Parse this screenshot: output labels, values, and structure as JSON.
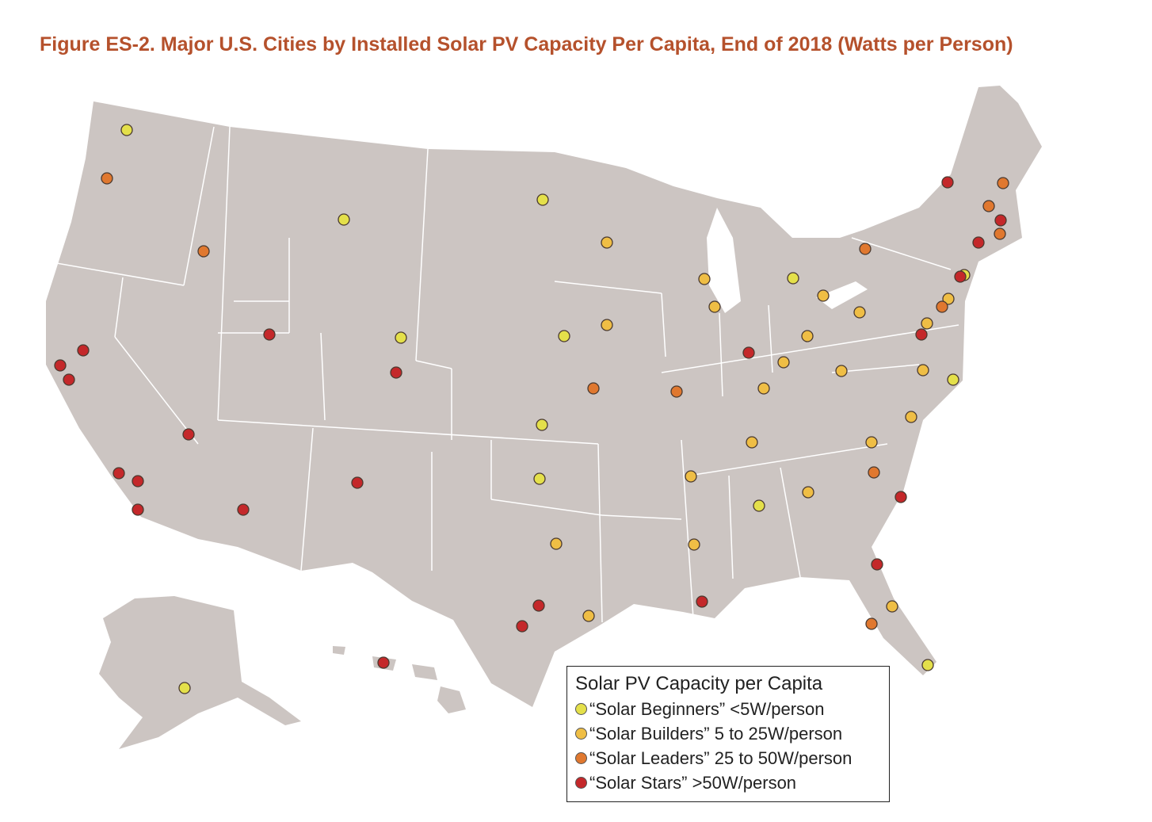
{
  "title": "Figure ES-2. Major U.S. Cities by Installed Solar PV Capacity Per Capita, End of 2018 (Watts per Person)",
  "map_fill": "#ccc5c2",
  "legend": {
    "title": "Solar PV Capacity per Capita",
    "items": [
      {
        "label": "“Solar Beginners” <5W/person",
        "color": "#e4e04a"
      },
      {
        "label": "“Solar Builders” 5 to 25W/person",
        "color": "#efbe45"
      },
      {
        "label": "“Solar Leaders” 25 to 50W/person",
        "color": "#e0782f"
      },
      {
        "label": "“Solar Stars” >50W/person",
        "color": "#c4282a"
      }
    ]
  }
}
